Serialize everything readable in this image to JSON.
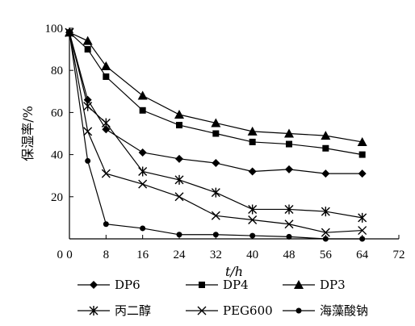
{
  "chart_data": {
    "type": "line",
    "xlabel": "t/h",
    "ylabel": "保湿率/%",
    "xlim": [
      0,
      72
    ],
    "ylim": [
      0,
      100
    ],
    "xticks": [
      0,
      8,
      16,
      24,
      32,
      40,
      48,
      56,
      64,
      72
    ],
    "yticks": [
      20,
      40,
      60,
      80,
      100
    ],
    "grid": false,
    "legend_position": "bottom",
    "series": [
      {
        "name": "DP6",
        "marker": "diamond",
        "x": [
          0,
          4,
          8,
          16,
          24,
          32,
          40,
          48,
          56,
          64
        ],
        "y": [
          98,
          66,
          52,
          41,
          38,
          36,
          32,
          33,
          31,
          31
        ]
      },
      {
        "name": "DP4",
        "marker": "square",
        "x": [
          0,
          4,
          8,
          16,
          24,
          32,
          40,
          48,
          56,
          64
        ],
        "y": [
          98,
          90,
          77,
          61,
          54,
          50,
          46,
          45,
          43,
          40
        ]
      },
      {
        "name": "DP3",
        "marker": "triangle",
        "x": [
          0,
          4,
          8,
          16,
          24,
          32,
          40,
          48,
          56,
          64
        ],
        "y": [
          98,
          94,
          82,
          68,
          59,
          55,
          51,
          50,
          49,
          46
        ]
      },
      {
        "name": "丙二醇",
        "marker": "asterisk",
        "x": [
          0,
          4,
          8,
          16,
          24,
          32,
          40,
          48,
          56,
          64
        ],
        "y": [
          98,
          63,
          55,
          32,
          28,
          22,
          14,
          14,
          13,
          10
        ]
      },
      {
        "name": "PEG600",
        "marker": "cross",
        "x": [
          0,
          4,
          8,
          16,
          24,
          32,
          40,
          48,
          56,
          64
        ],
        "y": [
          98,
          51,
          31,
          26,
          20,
          11,
          9,
          7,
          3,
          4
        ]
      },
      {
        "name": "海藻酸钠",
        "marker": "circle",
        "x": [
          0,
          4,
          8,
          16,
          24,
          32,
          40,
          48,
          56,
          64
        ],
        "y": [
          98,
          37,
          7,
          5,
          2,
          2,
          1.5,
          1,
          0,
          0
        ]
      }
    ]
  }
}
